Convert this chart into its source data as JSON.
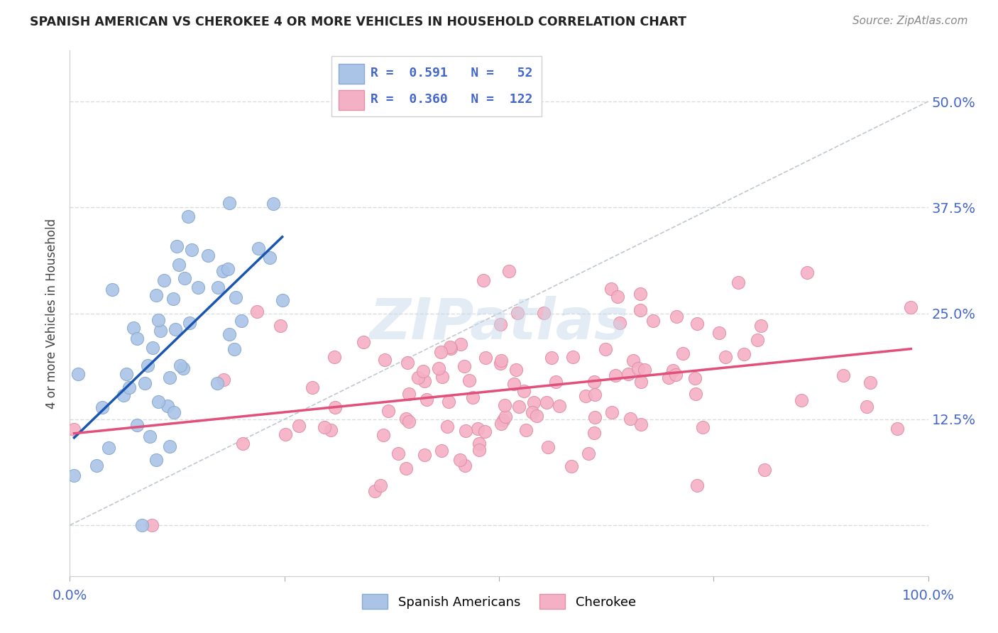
{
  "title": "SPANISH AMERICAN VS CHEROKEE 4 OR MORE VEHICLES IN HOUSEHOLD CORRELATION CHART",
  "source": "Source: ZipAtlas.com",
  "ylabel": "4 or more Vehicles in Household",
  "r_blue": 0.591,
  "n_blue": 52,
  "r_pink": 0.36,
  "n_pink": 122,
  "watermark": "ZIPatlas",
  "xlim": [
    0.0,
    1.0
  ],
  "ylim": [
    -0.06,
    0.56
  ],
  "background_color": "#ffffff",
  "blue_scatter_color": "#aac4e8",
  "blue_edge_color": "#88aacc",
  "pink_scatter_color": "#f4b0c4",
  "pink_edge_color": "#e090a8",
  "blue_line_color": "#1a56b0",
  "pink_line_color": "#e0507a",
  "dashed_line_color": "#c0c8d0",
  "grid_color": "#d8dde0",
  "ytick_vals": [
    0.0,
    0.125,
    0.25,
    0.375,
    0.5
  ],
  "ytick_labels": [
    "",
    "12.5%",
    "25.0%",
    "37.5%",
    "50.0%"
  ],
  "tick_color": "#4466cc",
  "title_color": "#222222",
  "source_color": "#888888",
  "ylabel_color": "#444444",
  "legend_entry_blue": "R =  0.591   N =   52",
  "legend_entry_pink": "R =  0.360   N =  122",
  "bottom_legend_labels": [
    "Spanish Americans",
    "Cherokee"
  ]
}
